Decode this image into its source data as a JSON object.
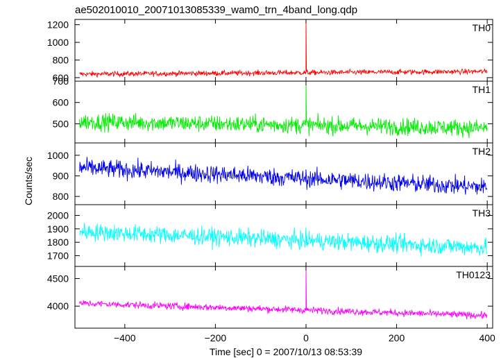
{
  "title": "ae502010010_20071013085339_wam0_trn_4band_long.qdp",
  "chart_data": {
    "type": "line",
    "title": "ae502010010_20071013085339_wam0_trn_4band_long.qdp",
    "xlabel": "Time [sec] 0 = 2007/10/13 08:53:39",
    "ylabel": "Counts/sec",
    "xlim": [
      -510,
      412
    ],
    "x_ticks": [
      -400,
      -200,
      0,
      200,
      400
    ],
    "x_tick_labels": [
      "−400",
      "−200",
      "0",
      "200",
      "400"
    ],
    "grid": false,
    "panels": [
      {
        "name": "TH0",
        "color": "#ff0000",
        "ylim": [
          560,
          1260
        ],
        "y_ticks": [
          600,
          800,
          1000,
          1200
        ],
        "y_tick_labels": [
          "600",
          "800",
          "1000",
          "1200"
        ],
        "baseline_start": 640,
        "baseline_end": 670,
        "noise_amplitude": 28,
        "peaks": [
          {
            "x": 0,
            "y": 1250
          }
        ]
      },
      {
        "name": "TH1",
        "color": "#00ee00",
        "ylim": [
          410,
          700
        ],
        "y_ticks": [
          500,
          600,
          700
        ],
        "y_tick_labels": [
          "500",
          "600",
          "700"
        ],
        "baseline_start": 510,
        "baseline_end": 480,
        "noise_amplitude": 38,
        "peaks": [
          {
            "x": 0,
            "y": 700
          }
        ]
      },
      {
        "name": "TH2",
        "color": "#0000ee",
        "ylim": [
          760,
          1060
        ],
        "y_ticks": [
          800,
          900,
          1000
        ],
        "y_tick_labels": [
          "800",
          "900",
          "1000"
        ],
        "baseline_start": 940,
        "baseline_end": 845,
        "noise_amplitude": 42,
        "peaks": []
      },
      {
        "name": "TH3",
        "color": "#00ffff",
        "ylim": [
          1620,
          2080
        ],
        "y_ticks": [
          1700,
          1800,
          1900,
          2000
        ],
        "y_tick_labels": [
          "1700",
          "1800",
          "1900",
          "2000"
        ],
        "baseline_start": 1880,
        "baseline_end": 1760,
        "noise_amplitude": 62,
        "peaks": []
      },
      {
        "name": "TH0123",
        "color": "#ff00ff",
        "ylim": [
          3600,
          4720
        ],
        "y_ticks": [
          4000,
          4500
        ],
        "y_tick_labels": [
          "4000",
          "4500"
        ],
        "baseline_start": 4050,
        "baseline_end": 3830,
        "noise_amplitude": 60,
        "peaks": [
          {
            "x": 0,
            "y": 4700
          }
        ]
      }
    ]
  }
}
